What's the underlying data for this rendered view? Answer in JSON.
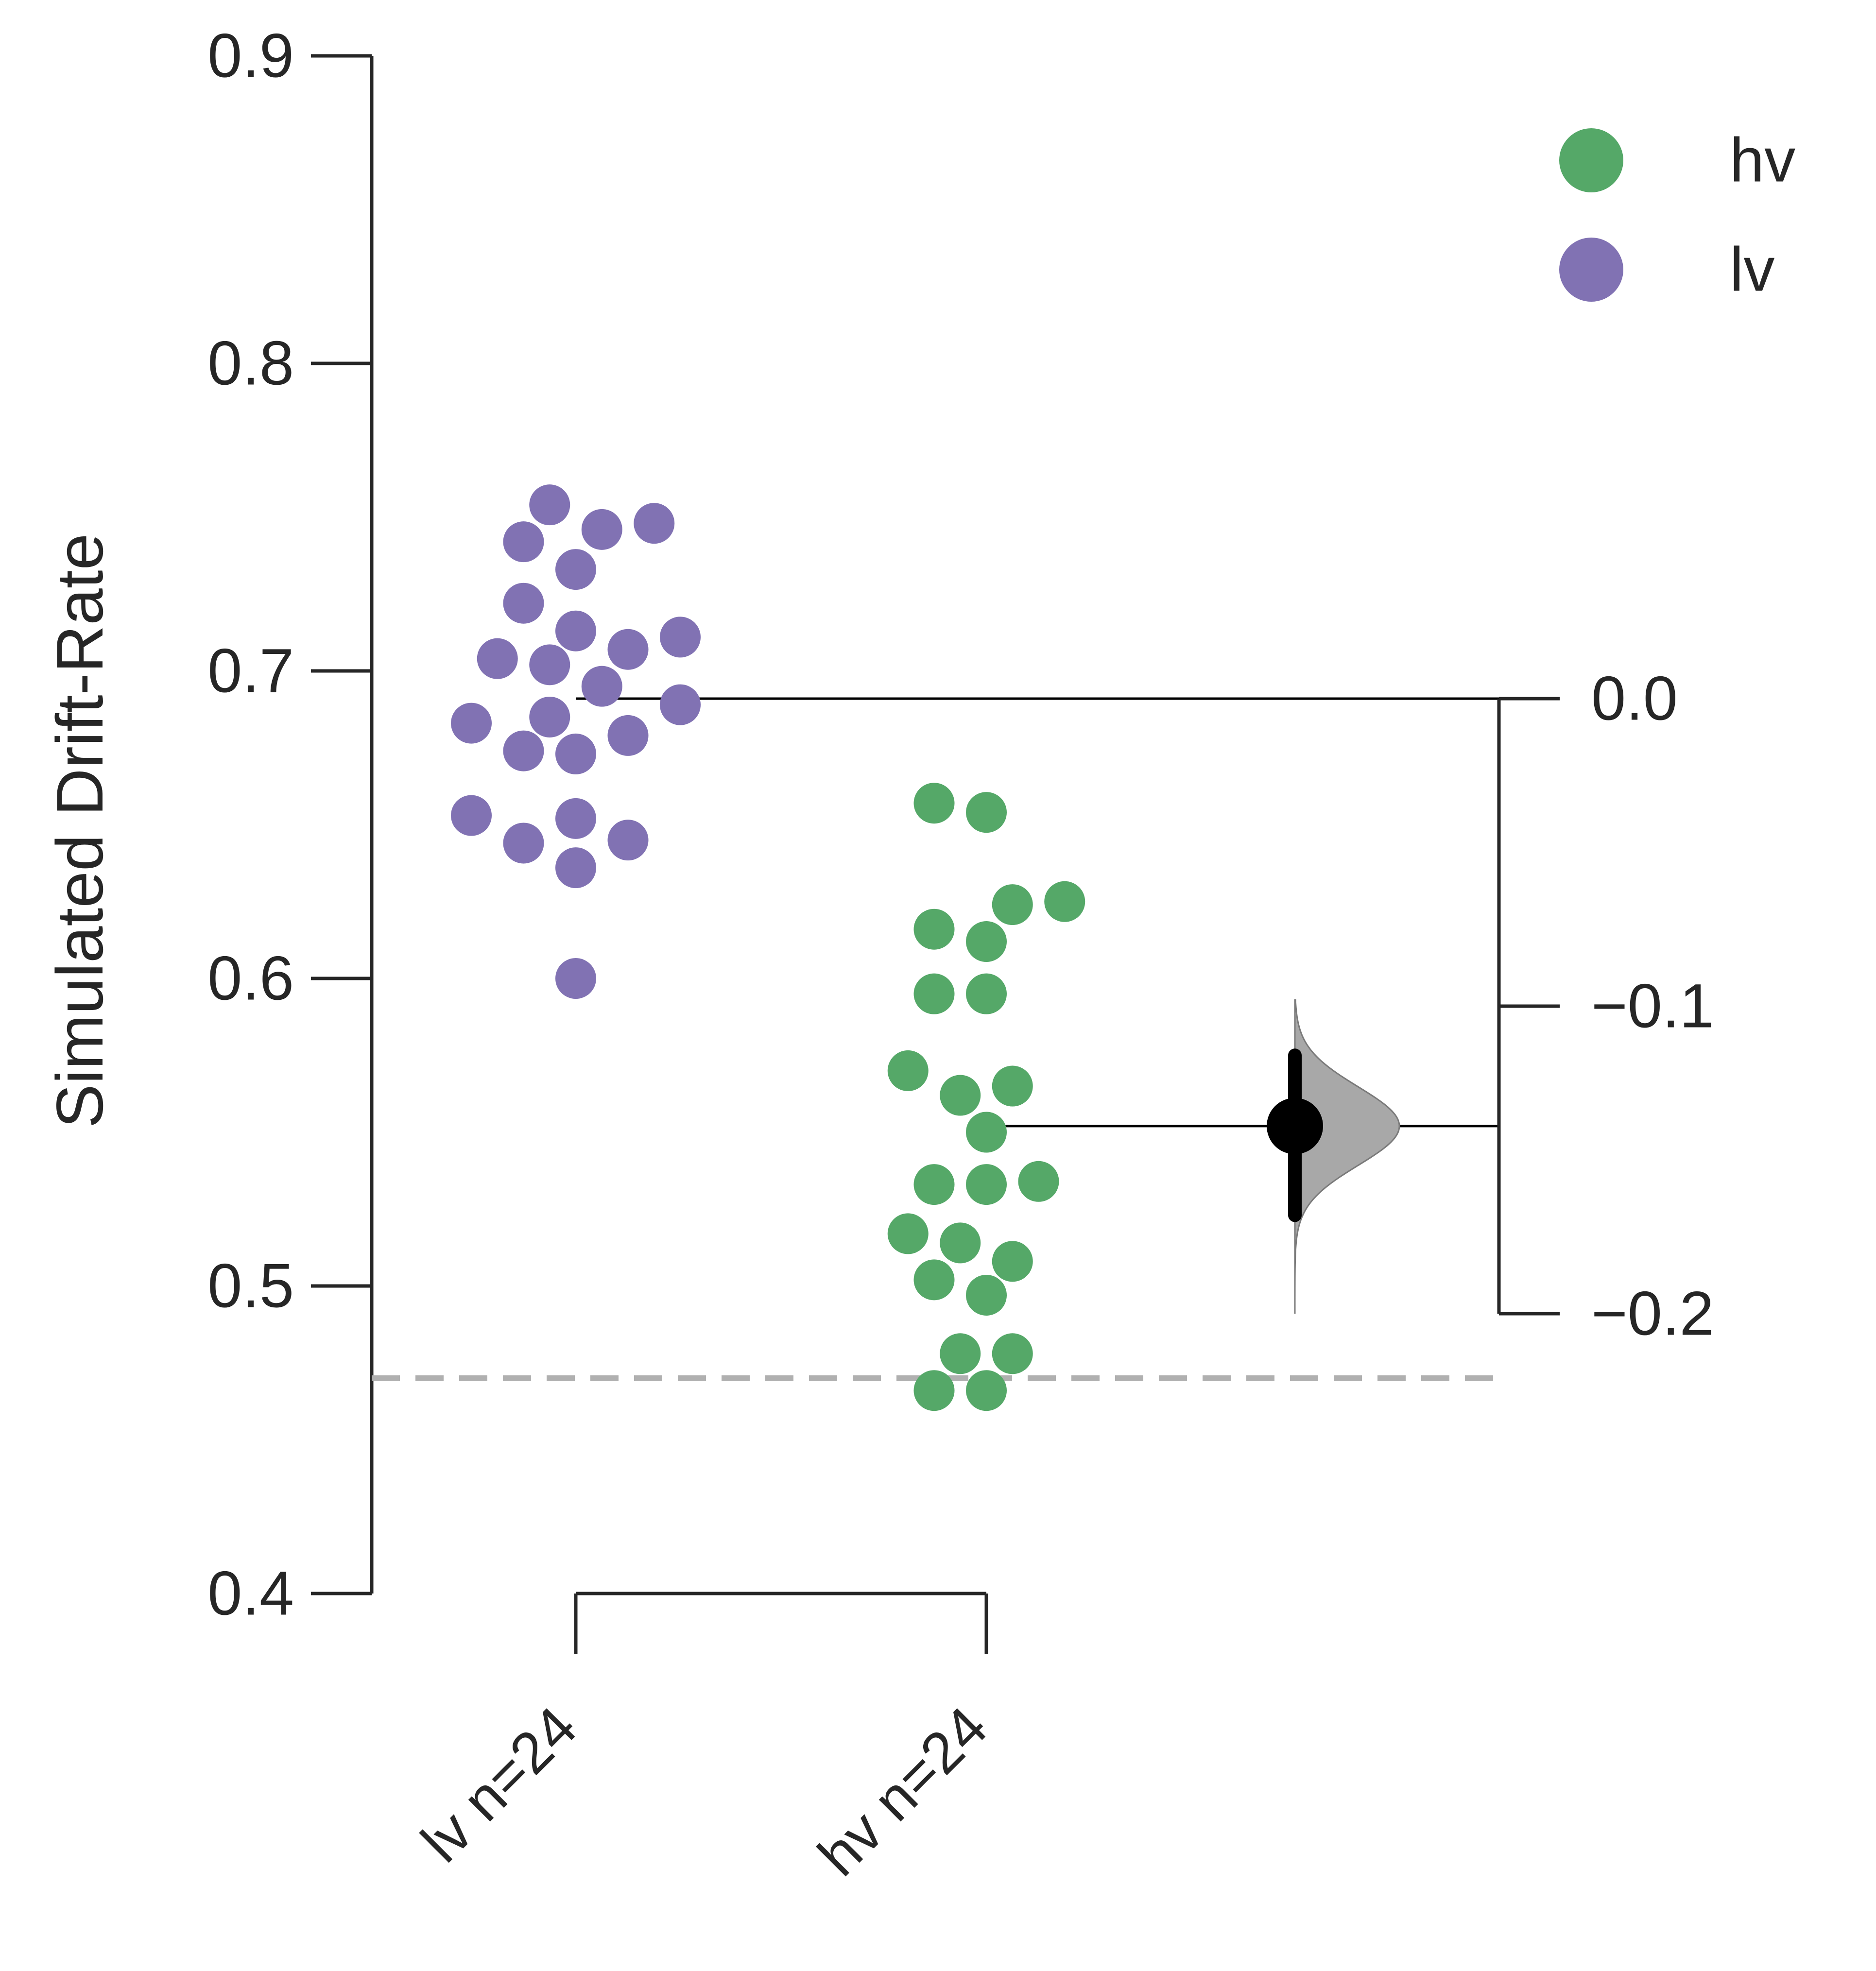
{
  "chart_data": {
    "type": "scatter",
    "ylabel": "Simulated Drift-Rate",
    "ylim": [
      0.4,
      0.9
    ],
    "yticks": [
      "0.4",
      "0.5",
      "0.6",
      "0.7",
      "0.8",
      "0.9"
    ],
    "groups": [
      {
        "name": "lv",
        "label": "lv n=24",
        "color": "#8172b3",
        "values": [
          0.754,
          0.748,
          0.746,
          0.742,
          0.733,
          0.722,
          0.713,
          0.711,
          0.707,
          0.704,
          0.702,
          0.695,
          0.689,
          0.685,
          0.683,
          0.679,
          0.674,
          0.673,
          0.653,
          0.652,
          0.645,
          0.644,
          0.636,
          0.6
        ]
      },
      {
        "name": "hv",
        "label": "hv n=24",
        "color": "#55a868",
        "values": [
          0.657,
          0.654,
          0.625,
          0.624,
          0.616,
          0.612,
          0.595,
          0.595,
          0.57,
          0.565,
          0.562,
          0.55,
          0.534,
          0.533,
          0.533,
          0.517,
          0.514,
          0.508,
          0.502,
          0.497,
          0.478,
          0.478,
          0.466,
          0.466
        ]
      }
    ],
    "reference_line": {
      "value": 0.47,
      "style": "dashed",
      "color": "#b0b0b0"
    },
    "legend": {
      "placement": "top-right",
      "entries": [
        {
          "label": "hv",
          "color": "#55a868"
        },
        {
          "label": "lv",
          "color": "#8172b3"
        }
      ]
    },
    "effect_size": {
      "axis_ylim": [
        -0.2,
        0.0
      ],
      "axis_ticks": [
        "0.0",
        "−0.1",
        "−0.2"
      ],
      "baseline_mean": 0.691,
      "test_mean": 0.552,
      "difference": -0.139,
      "ci": [
        -0.168,
        -0.116
      ],
      "distribution_range": [
        -0.2,
        -0.098
      ],
      "color": "#000000",
      "fill": "#a8a8a8"
    }
  }
}
